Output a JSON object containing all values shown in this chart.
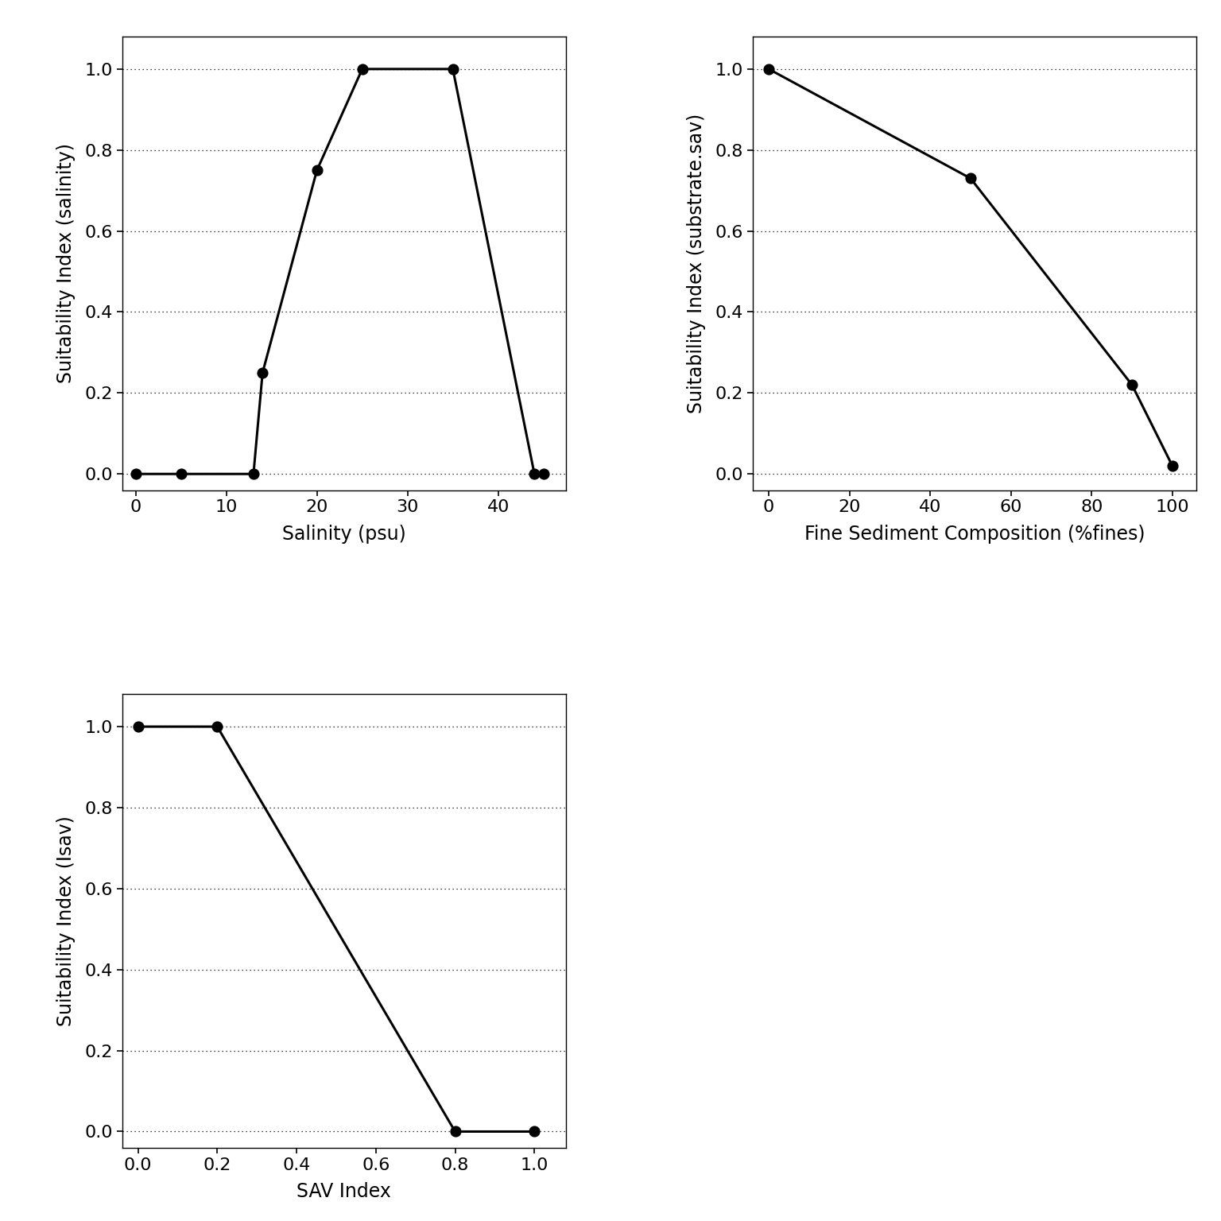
{
  "plot1": {
    "x": [
      0,
      5,
      13,
      14,
      20,
      25,
      35,
      44,
      45
    ],
    "y": [
      0.0,
      0.0,
      0.0,
      0.25,
      0.75,
      1.0,
      1.0,
      0.0,
      0.0
    ],
    "xlabel": "Salinity (psu)",
    "ylabel": "Suitability Index (salinity)",
    "xlim": [
      -1.5,
      47.5
    ],
    "ylim": [
      -0.04,
      1.08
    ],
    "xticks": [
      0,
      10,
      20,
      30,
      40
    ],
    "yticks": [
      0.0,
      0.2,
      0.4,
      0.6,
      0.8,
      1.0
    ]
  },
  "plot2": {
    "x": [
      0,
      50,
      90,
      100
    ],
    "y": [
      1.0,
      0.73,
      0.22,
      0.02
    ],
    "xlabel": "Fine Sediment Composition (%fines)",
    "ylabel": "Suitability Index (substrate.sav)",
    "xlim": [
      -4,
      106
    ],
    "ylim": [
      -0.04,
      1.08
    ],
    "xticks": [
      0,
      20,
      40,
      60,
      80,
      100
    ],
    "yticks": [
      0.0,
      0.2,
      0.4,
      0.6,
      0.8,
      1.0
    ]
  },
  "plot3": {
    "x": [
      0.0,
      0.2,
      0.8,
      1.0
    ],
    "y": [
      1.0,
      1.0,
      0.0,
      0.0
    ],
    "xlabel": "SAV Index",
    "ylabel": "Suitability Index (Isav)",
    "xlim": [
      -0.04,
      1.08
    ],
    "ylim": [
      -0.04,
      1.08
    ],
    "xticks": [
      0.0,
      0.2,
      0.4,
      0.6,
      0.8,
      1.0
    ],
    "yticks": [
      0.0,
      0.2,
      0.4,
      0.6,
      0.8,
      1.0
    ]
  },
  "line_color": "#000000",
  "marker": "o",
  "markersize": 9,
  "linewidth": 2.2,
  "markerfacecolor": "#000000",
  "background_color": "#ffffff",
  "grid_color": "#000000",
  "grid_alpha": 0.4,
  "grid_linestyle": "dotted",
  "grid_linewidth": 0.9,
  "tick_fontsize": 16,
  "label_fontsize": 17
}
